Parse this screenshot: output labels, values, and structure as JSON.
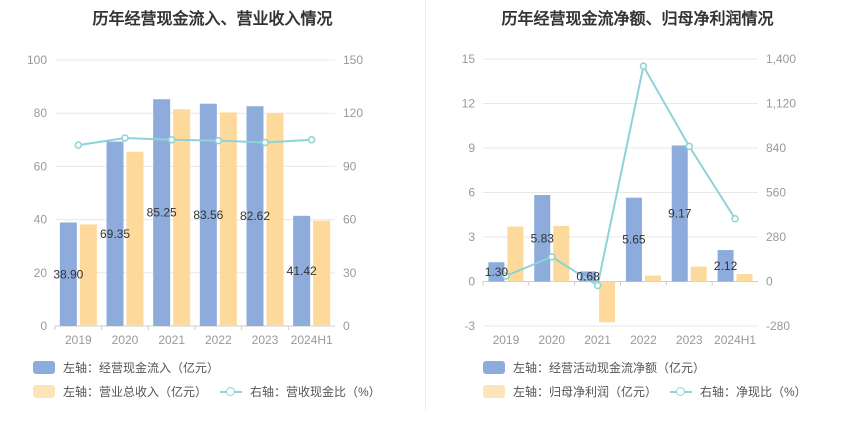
{
  "colors": {
    "bar1": "#8eacdb",
    "bar2": "#fdd99b",
    "line": "#8ed3d8",
    "grid": "#e8e8e8",
    "axis": "#cccccc"
  },
  "chart_data": [
    {
      "type": "bar",
      "title": "历年经营现金流入、营业收入情况",
      "categories": [
        "2019",
        "2020",
        "2021",
        "2022",
        "2023",
        "2024H1"
      ],
      "left_axis": {
        "ylim": [
          0,
          100
        ],
        "ticks": [
          "0",
          "20",
          "40",
          "60",
          "80",
          "100"
        ]
      },
      "right_axis": {
        "ylim": [
          0,
          150
        ],
        "ticks": [
          "0",
          "30",
          "60",
          "90",
          "120",
          "150"
        ]
      },
      "series": [
        {
          "name": "左轴：经营现金流入（亿元）",
          "axis": "left",
          "kind": "bar",
          "values": [
            38.9,
            69.35,
            85.25,
            83.56,
            82.62,
            41.42
          ],
          "labels": [
            "38.90",
            "69.35",
            "85.25",
            "83.56",
            "82.62",
            "41.42"
          ]
        },
        {
          "name": "左轴：营业总收入（亿元）",
          "axis": "left",
          "kind": "bar",
          "values": [
            38.2,
            65.5,
            81.5,
            80.3,
            80.1,
            39.6
          ]
        },
        {
          "name": "右轴：营收现金比（%）",
          "axis": "right",
          "kind": "line",
          "values": [
            102,
            106,
            105,
            104.5,
            103.5,
            105
          ]
        }
      ]
    },
    {
      "type": "bar",
      "title": "历年经营现金流净额、归母净利润情况",
      "categories": [
        "2019",
        "2020",
        "2021",
        "2022",
        "2023",
        "2024H1"
      ],
      "left_axis": {
        "ylim": [
          -3,
          15
        ],
        "ticks": [
          "-3",
          "0",
          "3",
          "6",
          "9",
          "12",
          "15"
        ]
      },
      "right_axis": {
        "ylim": [
          -280,
          1400
        ],
        "ticks": [
          "-280",
          "0",
          "280",
          "560",
          "840",
          "1,120",
          "1,400"
        ]
      },
      "series": [
        {
          "name": "左轴：经营活动现金流净额（亿元）",
          "axis": "left",
          "kind": "bar",
          "values": [
            1.3,
            5.83,
            0.68,
            5.65,
            9.17,
            2.12
          ],
          "labels": [
            "1.30",
            "5.83",
            "0.68",
            "5.65",
            "9.17",
            "2.12"
          ]
        },
        {
          "name": "左轴：归母净利润（亿元）",
          "axis": "left",
          "kind": "bar",
          "values": [
            3.7,
            3.75,
            -2.75,
            0.4,
            1.0,
            0.5
          ]
        },
        {
          "name": "右轴：净现比（%）",
          "axis": "right",
          "kind": "line",
          "values": [
            35,
            155,
            -25,
            1355,
            850,
            395
          ]
        }
      ]
    }
  ]
}
